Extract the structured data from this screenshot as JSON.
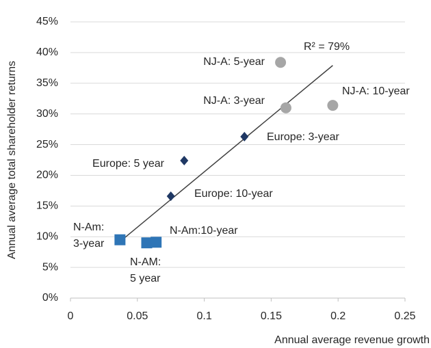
{
  "chart_data": {
    "type": "scatter",
    "x_label": "Annual average revenue growth",
    "y_label": "Annual average total shareholder returns",
    "annotation": "R² = 79%",
    "xlim": [
      0,
      0.25
    ],
    "xticks": [
      0,
      0.05,
      0.1,
      0.15,
      0.2,
      0.25
    ],
    "ylim": [
      0,
      45
    ],
    "yticks": [
      {
        "value": 0,
        "label": "0%"
      },
      {
        "value": 5,
        "label": "5%"
      },
      {
        "value": 10,
        "label": "10%"
      },
      {
        "value": 15,
        "label": "15%"
      },
      {
        "value": 20,
        "label": "20%"
      },
      {
        "value": 25,
        "label": "25%"
      },
      {
        "value": 30,
        "label": "30%"
      },
      {
        "value": 35,
        "label": "35%"
      },
      {
        "value": 40,
        "label": "40%"
      },
      {
        "value": 45,
        "label": "45%"
      }
    ],
    "grid": true,
    "series": [
      {
        "marker": "circle",
        "color": "#a6a6a6",
        "x": [
          0.157,
          0.161,
          0.196
        ],
        "values": [
          38.4,
          31.0,
          31.4
        ],
        "labels": [
          [
            "NJ-A: 5-year"
          ],
          [
            "NJ-A: 3-year"
          ],
          [
            "NJ-A: 10-year"
          ]
        ]
      },
      {
        "marker": "diamond",
        "color": "#1f3864",
        "x": [
          0.13,
          0.085,
          0.075
        ],
        "values": [
          26.3,
          22.4,
          16.6
        ],
        "labels": [
          [
            "Europe: 3-year"
          ],
          [
            "Europe: 5 year"
          ],
          [
            "Europe: 10-year"
          ]
        ]
      },
      {
        "marker": "square",
        "color": "#2e75b6",
        "x": [
          0.037,
          0.057,
          0.064
        ],
        "values": [
          9.5,
          9.0,
          9.1
        ],
        "labels": [
          [
            "N-Am:",
            "3-year"
          ],
          [
            "N-AM:",
            "5 year"
          ],
          [
            "N-Am:10-year"
          ]
        ]
      }
    ],
    "trendline": {
      "color": "#404040",
      "x": [
        0.037,
        0.196
      ],
      "values": [
        9.2,
        37.9
      ]
    }
  }
}
